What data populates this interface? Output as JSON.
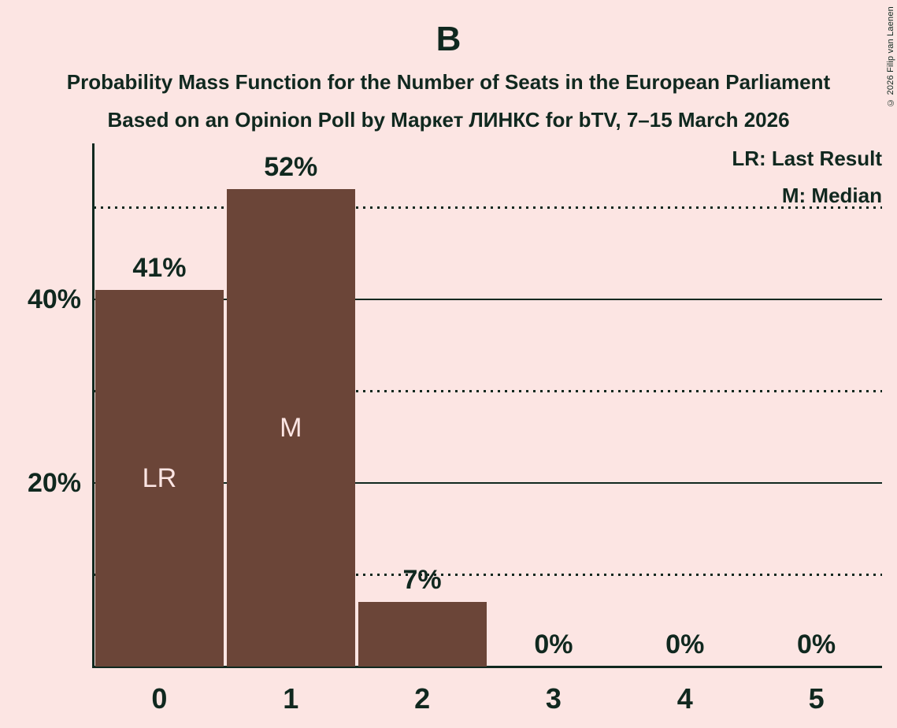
{
  "title": "B",
  "subtitle1": "Probability Mass Function for the Number of Seats in the European Parliament",
  "subtitle2": "Based on an Opinion Poll by Маркет ЛИНКС for bTV, 7–15 March 2026",
  "copyright": "© 2026 Filip van Laenen",
  "legend": {
    "lr": "LR: Last Result",
    "m": "M: Median"
  },
  "colors": {
    "background": "#fce5e3",
    "bar": "#6b4538",
    "text": "#10281f",
    "bar_label": "#fce5e3"
  },
  "chart_data": {
    "type": "bar",
    "title": "B",
    "xlabel": "",
    "ylabel": "",
    "categories": [
      "0",
      "1",
      "2",
      "3",
      "4",
      "5"
    ],
    "values": [
      41,
      52,
      7,
      0,
      0,
      0
    ],
    "value_labels": [
      "41%",
      "52%",
      "7%",
      "0%",
      "0%",
      "0%"
    ],
    "bar_annotations": [
      {
        "index": 0,
        "label": "LR",
        "meaning": "Last Result"
      },
      {
        "index": 1,
        "label": "M",
        "meaning": "Median"
      }
    ],
    "ylim": [
      0,
      57
    ],
    "yticks": [
      {
        "pct": 20,
        "label": "20%"
      },
      {
        "pct": 40,
        "label": "40%"
      }
    ],
    "gridlines": [
      {
        "pct": 10,
        "style": "dotted"
      },
      {
        "pct": 20,
        "style": "solid"
      },
      {
        "pct": 30,
        "style": "dotted"
      },
      {
        "pct": 40,
        "style": "solid"
      },
      {
        "pct": 50,
        "style": "dotted"
      }
    ],
    "grid": true,
    "legend_position": "top-right"
  }
}
